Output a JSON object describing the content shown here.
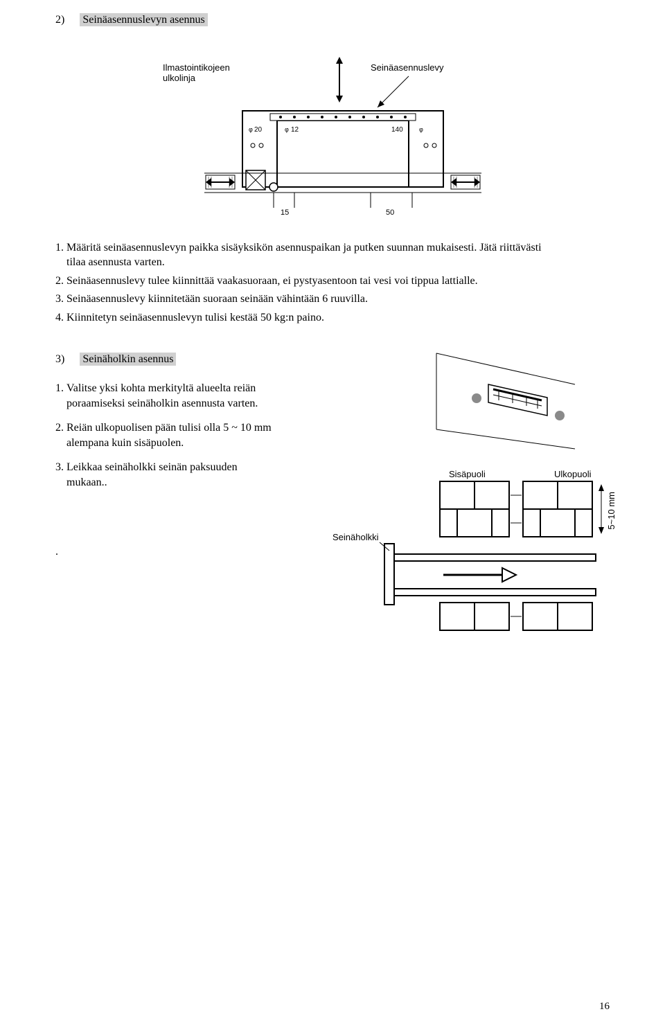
{
  "section2": {
    "number": "2)",
    "title": "Seinäasennuslevyn asennus",
    "items": [
      "Määritä seinäasennuslevyn paikka sisäyksikön asennuspaikan ja putken suunnan mukaisesti. Jätä riittävästi tilaa asennusta varten.",
      "Seinäasennuslevy tulee kiinnittää vaakasuoraan, ei pystyasentoon tai vesi voi tippua lattialle.",
      "Seinäasennuslevy kiinnitetään suoraan seinään vähintään 6 ruuvilla.",
      "Kiinnitetyn seinäasennuslevyn tulisi kestää 50 kg:n paino."
    ]
  },
  "section3": {
    "number": "3)",
    "title": "Seinäholkin asennus",
    "items": [
      "Valitse yksi kohta merkityltä alueelta reiän poraamiseksi seinäholkin asennusta varten.",
      "Reiän ulkopuolisen pään tulisi olla 5 ~ 10 mm alempana kuin sisäpuolen.",
      "Leikkaa seinäholkki seinän paksuuden mukaan.."
    ]
  },
  "figure1": {
    "label_left": "Ilmastointikojeen ulkolinja",
    "label_right": "Seinäasennuslevy",
    "dims": {
      "d1": "20",
      "d2": "12",
      "d3": "140",
      "d4": "15",
      "d5": "50"
    },
    "colors": {
      "line": "#000000",
      "fill": "#ffffff"
    }
  },
  "figure2": {
    "label_inside": "Sisäpuoli",
    "label_outside": "Ulkopuoli",
    "label_sleeve": "Seinäholkki",
    "label_gap": "5~10 mm",
    "colors": {
      "line": "#000000",
      "dot": "#8a8a8a"
    }
  },
  "page_number": "16",
  "trailing_period": "."
}
